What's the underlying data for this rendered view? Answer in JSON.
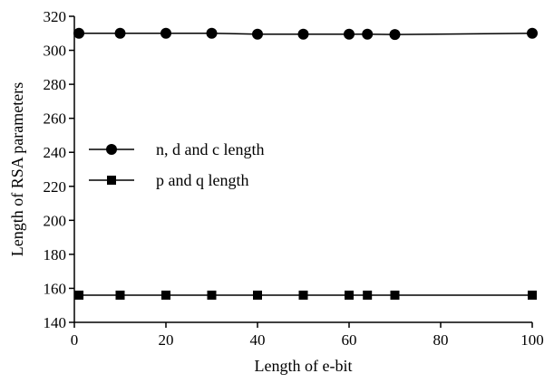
{
  "chart_data": {
    "type": "line",
    "title": "",
    "xlabel": "Length of e-bit",
    "ylabel": "Length of RSA parameters",
    "xlim": [
      0,
      100
    ],
    "ylim": [
      140,
      320
    ],
    "xticks": [
      0,
      20,
      40,
      60,
      80,
      100
    ],
    "yticks": [
      140,
      160,
      180,
      200,
      220,
      240,
      260,
      280,
      300,
      320
    ],
    "grid": false,
    "legend_position": "left-middle",
    "series": [
      {
        "name": "n, d and c length",
        "marker": "circle",
        "color": "#000000",
        "x": [
          1,
          10,
          20,
          30,
          40,
          50,
          60,
          64,
          70,
          100
        ],
        "y": [
          310,
          310,
          310,
          310,
          309.5,
          309.5,
          309.5,
          309.5,
          309.3,
          310
        ]
      },
      {
        "name": "p and q length",
        "marker": "square",
        "color": "#000000",
        "x": [
          1,
          10,
          20,
          30,
          40,
          50,
          60,
          64,
          70,
          100
        ],
        "y": [
          156,
          156,
          156,
          156,
          156,
          156,
          156,
          156,
          156,
          156
        ]
      }
    ]
  }
}
